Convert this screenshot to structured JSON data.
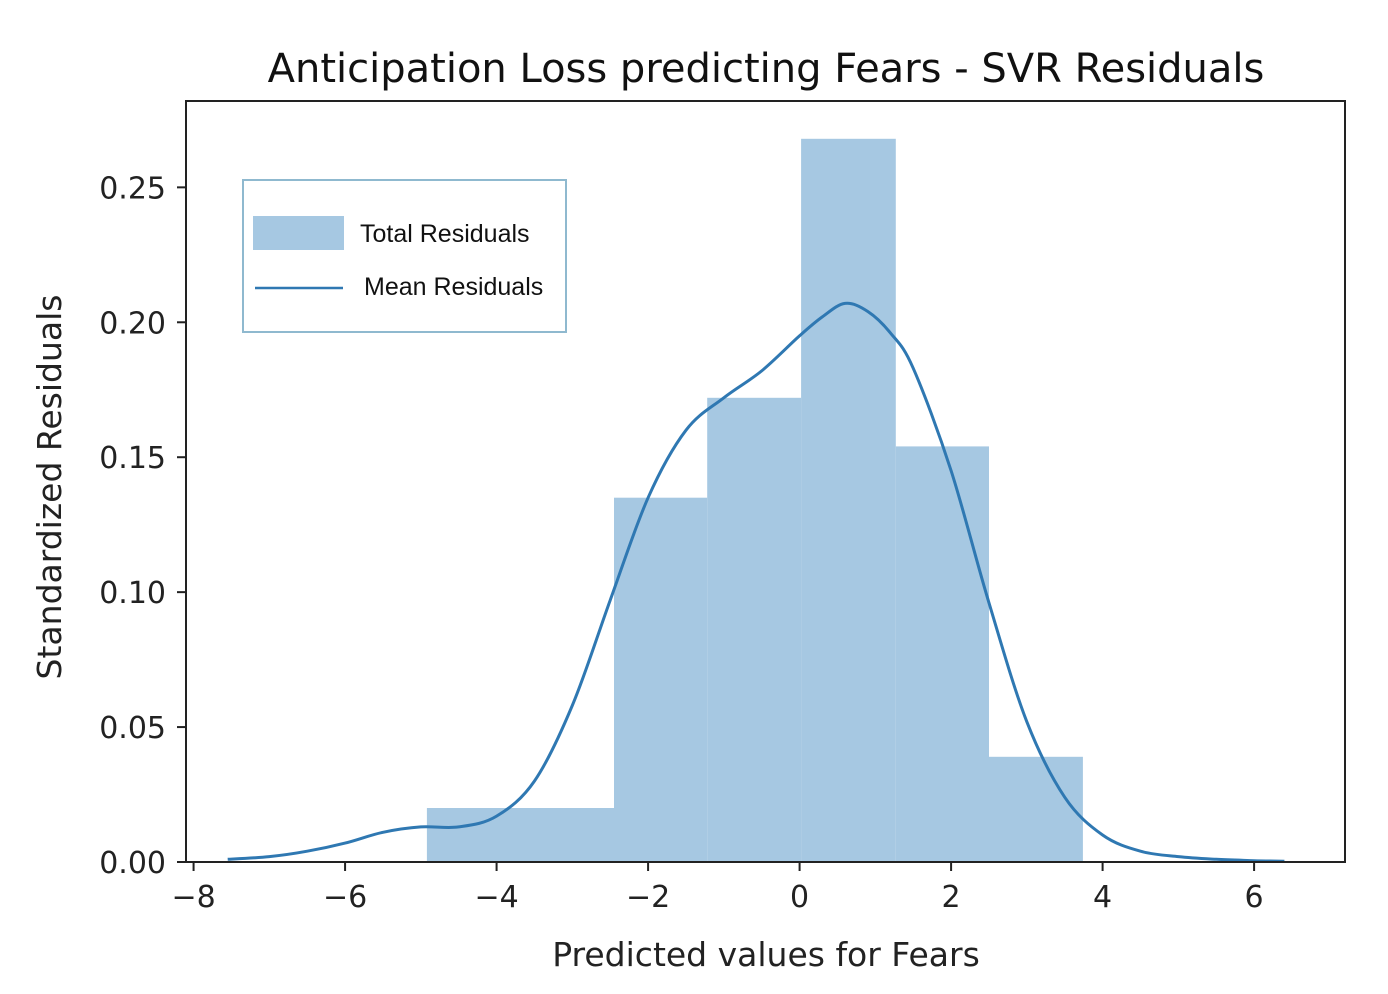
{
  "chart_data": {
    "type": "bar",
    "title": "Anticipation Loss predicting Fears - SVR Residuals",
    "xlabel": "Predicted values for Fears",
    "ylabel": "Standardized Residuals",
    "xlim": [
      -8.1,
      7.2
    ],
    "ylim": [
      0,
      0.282
    ],
    "xticks": [
      -8,
      -6,
      -4,
      -2,
      0,
      2,
      4,
      6
    ],
    "xtick_labels": [
      "−8",
      "−6",
      "−4",
      "−2",
      "0",
      "2",
      "4",
      "6"
    ],
    "yticks": [
      0,
      0.05,
      0.1,
      0.15,
      0.2,
      0.25
    ],
    "ytick_labels": [
      "0.00",
      "0.05",
      "0.10",
      "0.15",
      "0.20",
      "0.25"
    ],
    "grid": false,
    "legend_position": "upper-left",
    "bar_color": "#a6c8e2",
    "line_color": "#2f78b2",
    "series": [
      {
        "name": "Total Residuals",
        "kind": "histogram",
        "bins": [
          {
            "x0": -4.92,
            "x1": -2.45,
            "value": 0.02
          },
          {
            "x0": -2.45,
            "x1": -1.22,
            "value": 0.135
          },
          {
            "x0": -1.22,
            "x1": 0.02,
            "value": 0.172
          },
          {
            "x0": 0.02,
            "x1": 1.27,
            "value": 0.268
          },
          {
            "x0": 1.27,
            "x1": 2.5,
            "value": 0.154
          },
          {
            "x0": 2.5,
            "x1": 3.74,
            "value": 0.039
          }
        ]
      },
      {
        "name": "Mean Residuals",
        "kind": "kde",
        "x": [
          -7.55,
          -7.0,
          -6.5,
          -6.0,
          -5.5,
          -5.0,
          -4.5,
          -4.0,
          -3.5,
          -3.0,
          -2.5,
          -2.0,
          -1.5,
          -1.0,
          -0.5,
          0.0,
          0.3,
          0.6,
          0.9,
          1.2,
          1.5,
          2.0,
          2.5,
          3.0,
          3.5,
          4.0,
          4.5,
          5.0,
          5.5,
          6.0,
          6.4
        ],
        "y": [
          0.001,
          0.002,
          0.004,
          0.007,
          0.011,
          0.013,
          0.013,
          0.017,
          0.03,
          0.058,
          0.097,
          0.135,
          0.16,
          0.172,
          0.182,
          0.195,
          0.202,
          0.207,
          0.204,
          0.196,
          0.183,
          0.145,
          0.096,
          0.052,
          0.024,
          0.01,
          0.004,
          0.002,
          0.001,
          0.0005,
          0.0003
        ]
      }
    ]
  }
}
